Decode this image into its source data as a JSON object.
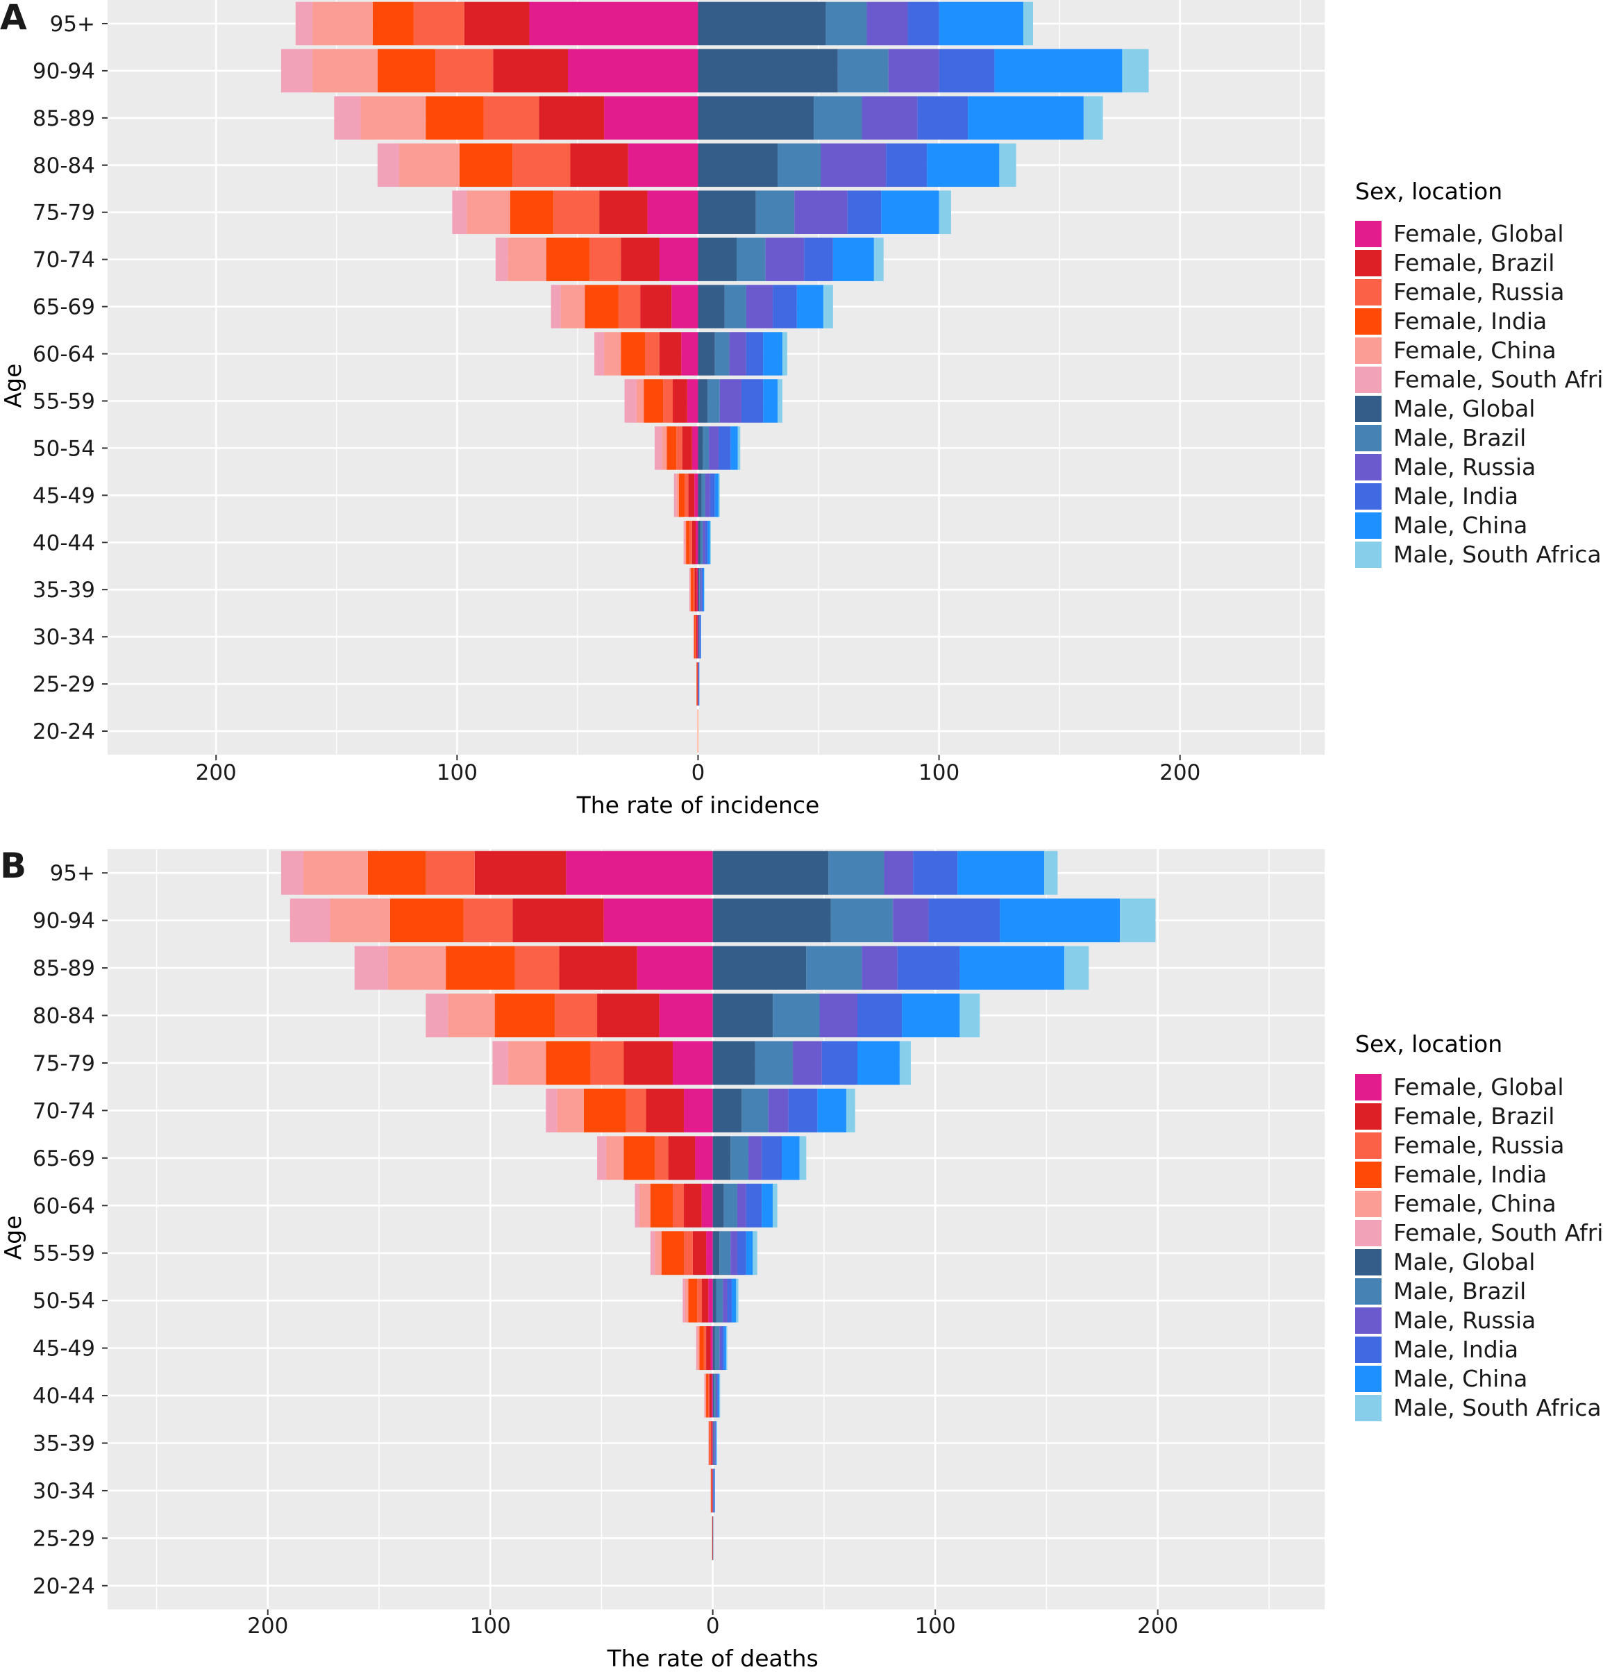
{
  "colors": {
    "Female, Global": "#e21c8c",
    "Female, Brazil": "#dd1f26",
    "Female, Russia": "#fb6147",
    "Female, India": "#fe4a06",
    "Female, China": "#fb9d95",
    "Female, South Africa": "#f1a2b8",
    "Male, Global": "#355d89",
    "Male, Brazil": "#4682b4",
    "Male, Russia": "#6a5acd",
    "Male, India": "#4169e1",
    "Male, China": "#1e90ff",
    "Male, South Africa": "#87ceeb",
    "panel_background": "#ebebeb",
    "grid": "#ffffff"
  },
  "chart_data": [
    {
      "panel_label": "A",
      "type": "bar",
      "orientation": "horizontal-stacked-pyramid",
      "xlabel": "The rate of incidence",
      "ylabel": "Age",
      "xlim": [
        -245,
        260
      ],
      "xticks": [
        -200,
        -100,
        0,
        100,
        200
      ],
      "xtick_labels": [
        "200",
        "100",
        "0",
        "100",
        "200"
      ],
      "legend_title": "Sex, location",
      "legend_position": "right",
      "grid": true,
      "categories": [
        "95+",
        "90-94",
        "85-89",
        "80-84",
        "75-79",
        "70-74",
        "65-69",
        "60-64",
        "55-59",
        "50-54",
        "45-49",
        "40-44",
        "35-39",
        "30-34",
        "25-29",
        "20-24"
      ],
      "series": [
        {
          "name": "Female, Global",
          "side": "left",
          "values": [
            70,
            54,
            39,
            29,
            21,
            16,
            11,
            7,
            4.5,
            2.5,
            1.5,
            1,
            0.5,
            0.3,
            0.1,
            0
          ]
        },
        {
          "name": "Female, Brazil",
          "side": "left",
          "values": [
            27,
            31,
            27,
            24,
            20,
            16,
            13,
            9,
            6,
            4,
            2.5,
            1.5,
            1,
            0.5,
            0.2,
            0.1
          ]
        },
        {
          "name": "Female, Russia",
          "side": "left",
          "values": [
            21,
            24,
            23,
            24,
            19,
            13,
            9,
            6,
            4,
            2.5,
            1.5,
            1,
            0.5,
            0.3,
            0.1,
            0
          ]
        },
        {
          "name": "Female, India",
          "side": "left",
          "values": [
            17,
            24,
            24,
            22,
            18,
            18,
            14,
            10,
            8,
            4,
            2.5,
            1.5,
            1,
            0.5,
            0.2,
            0.1
          ]
        },
        {
          "name": "Female, China",
          "side": "left",
          "values": [
            25,
            27,
            27,
            25,
            18,
            16,
            10,
            7,
            3,
            2,
            1,
            0.5,
            0.3,
            0.2,
            0.1,
            0
          ]
        },
        {
          "name": "Female, South Africa",
          "side": "left",
          "values": [
            7,
            13,
            11,
            9,
            6,
            5,
            4,
            4,
            5,
            3,
            1,
            0.5,
            0.3,
            0.2,
            0,
            0
          ]
        },
        {
          "name": "Male, Global",
          "side": "right",
          "values": [
            53,
            58,
            48,
            33,
            24,
            16,
            11,
            7,
            4,
            2,
            1.5,
            1,
            0.5,
            0.3,
            0.1,
            0
          ]
        },
        {
          "name": "Male, Brazil",
          "side": "right",
          "values": [
            17,
            21,
            20,
            18,
            16,
            12,
            9,
            6,
            5,
            2.5,
            1.5,
            1,
            0.5,
            0.2,
            0.1,
            0
          ]
        },
        {
          "name": "Male, Russia",
          "side": "right",
          "values": [
            17,
            21,
            23,
            27,
            22,
            16,
            11,
            7,
            9,
            4,
            2,
            1,
            0.5,
            0.3,
            0.1,
            0
          ]
        },
        {
          "name": "Male, India",
          "side": "right",
          "values": [
            13,
            23,
            21,
            17,
            14,
            12,
            10,
            7,
            9,
            5,
            2,
            1,
            0.5,
            0.3,
            0.1,
            0
          ]
        },
        {
          "name": "Male, China",
          "side": "right",
          "values": [
            35,
            53,
            48,
            30,
            24,
            17,
            11,
            8,
            6,
            3,
            1.5,
            1,
            0.5,
            0.2,
            0.1,
            0
          ]
        },
        {
          "name": "Male, South Africa",
          "side": "right",
          "values": [
            4,
            11,
            8,
            7,
            5,
            4,
            4,
            2,
            2,
            1,
            0.5,
            0.3,
            0.2,
            0,
            0,
            0
          ]
        }
      ]
    },
    {
      "panel_label": "B",
      "type": "bar",
      "orientation": "horizontal-stacked-pyramid",
      "xlabel": "The rate of deaths",
      "ylabel": "Age",
      "xlim": [
        -272,
        275
      ],
      "xticks": [
        -200,
        -100,
        0,
        100,
        200
      ],
      "xtick_labels": [
        "200",
        "100",
        "0",
        "100",
        "200"
      ],
      "legend_title": "Sex, location",
      "legend_position": "right",
      "grid": true,
      "categories": [
        "95+",
        "90-94",
        "85-89",
        "80-84",
        "75-79",
        "70-74",
        "65-69",
        "60-64",
        "55-59",
        "50-54",
        "45-49",
        "40-44",
        "35-39",
        "30-34",
        "25-29",
        "20-24"
      ],
      "series": [
        {
          "name": "Female, Global",
          "side": "left",
          "values": [
            66,
            49,
            34,
            24,
            18,
            13,
            8,
            5,
            3,
            2,
            1,
            0.5,
            0.3,
            0.2,
            0.1,
            0
          ]
        },
        {
          "name": "Female, Brazil",
          "side": "left",
          "values": [
            41,
            41,
            35,
            28,
            22,
            17,
            12,
            8,
            6,
            3,
            2,
            1,
            0.5,
            0.2,
            0.1,
            0
          ]
        },
        {
          "name": "Female, Russia",
          "side": "left",
          "values": [
            22,
            22,
            20,
            19,
            15,
            9,
            6,
            5,
            4,
            2,
            1,
            0.5,
            0.3,
            0.2,
            0,
            0
          ]
        },
        {
          "name": "Female, India",
          "side": "left",
          "values": [
            26,
            33,
            31,
            27,
            20,
            19,
            14,
            10,
            10,
            4,
            2,
            1,
            0.5,
            0.3,
            0.1,
            0
          ]
        },
        {
          "name": "Female, China",
          "side": "left",
          "values": [
            29,
            27,
            26,
            21,
            17,
            12,
            8,
            5,
            3,
            1.5,
            1,
            0.5,
            0.2,
            0.1,
            0,
            0
          ]
        },
        {
          "name": "Female, South Africa",
          "side": "left",
          "values": [
            10,
            18,
            15,
            10,
            7,
            5,
            4,
            2,
            2,
            1,
            0.5,
            0.3,
            0.2,
            0,
            0,
            0
          ]
        },
        {
          "name": "Male, Global",
          "side": "right",
          "values": [
            52,
            53,
            42,
            27,
            19,
            13,
            8,
            5,
            3,
            1.5,
            1,
            0.5,
            0.3,
            0.2,
            0.1,
            0
          ]
        },
        {
          "name": "Male, Brazil",
          "side": "right",
          "values": [
            25,
            28,
            25,
            21,
            17,
            12,
            8,
            6,
            5,
            3,
            2,
            1,
            0.5,
            0.2,
            0.1,
            0
          ]
        },
        {
          "name": "Male, Russia",
          "side": "right",
          "values": [
            13,
            16,
            16,
            17,
            13,
            9,
            6,
            4,
            3,
            2,
            1,
            0.5,
            0.3,
            0.2,
            0,
            0
          ]
        },
        {
          "name": "Male, India",
          "side": "right",
          "values": [
            20,
            32,
            28,
            20,
            16,
            13,
            9,
            7,
            4,
            2,
            1,
            0.5,
            0.3,
            0.2,
            0,
            0
          ]
        },
        {
          "name": "Male, China",
          "side": "right",
          "values": [
            39,
            54,
            47,
            26,
            19,
            13,
            8,
            5,
            3,
            2,
            1,
            0.5,
            0.3,
            0.2,
            0,
            0
          ]
        },
        {
          "name": "Male, South Africa",
          "side": "right",
          "values": [
            6,
            16,
            11,
            9,
            5,
            4,
            3,
            2,
            2,
            1,
            0.5,
            0.3,
            0.2,
            0,
            0,
            0
          ]
        }
      ]
    }
  ]
}
